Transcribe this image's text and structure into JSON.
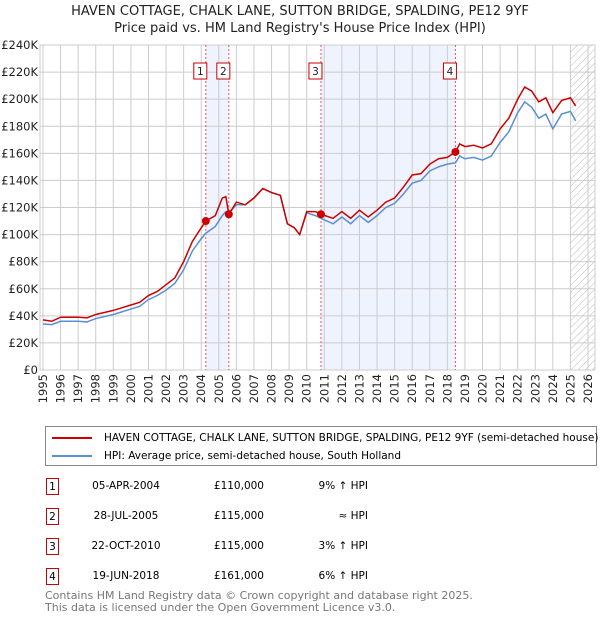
{
  "title": "HAVEN COTTAGE, CHALK LANE, SUTTON BRIDGE, SPALDING, PE12 9YF",
  "subtitle": "Price paid vs. HM Land Registry's House Price Index (HPI)",
  "chart_data": {
    "type": "line",
    "title": "HAVEN COTTAGE, CHALK LANE, SUTTON BRIDGE, SPALDING, PE12 9YF",
    "xlim": [
      1995,
      2026
    ],
    "ylim": [
      0,
      240000
    ],
    "x_ticks": [
      "1995",
      "1996",
      "1997",
      "1998",
      "1999",
      "2000",
      "2001",
      "2002",
      "2003",
      "2004",
      "2005",
      "2006",
      "2007",
      "2008",
      "2009",
      "2010",
      "2011",
      "2012",
      "2013",
      "2014",
      "2015",
      "2016",
      "2017",
      "2018",
      "2019",
      "2020",
      "2021",
      "2022",
      "2023",
      "2024",
      "2025",
      "2026"
    ],
    "y_ticks": [
      {
        "v": 0,
        "label": "£0"
      },
      {
        "v": 20000,
        "label": "£20K"
      },
      {
        "v": 40000,
        "label": "£40K"
      },
      {
        "v": 60000,
        "label": "£60K"
      },
      {
        "v": 80000,
        "label": "£80K"
      },
      {
        "v": 100000,
        "label": "£100K"
      },
      {
        "v": 120000,
        "label": "£120K"
      },
      {
        "v": 140000,
        "label": "£140K"
      },
      {
        "v": 160000,
        "label": "£160K"
      },
      {
        "v": 180000,
        "label": "£180K"
      },
      {
        "v": 200000,
        "label": "£200K"
      },
      {
        "v": 220000,
        "label": "£220K"
      },
      {
        "v": 240000,
        "label": "£240K"
      }
    ],
    "grid": true,
    "projection_from": 2025.0,
    "series": [
      {
        "name": "HAVEN COTTAGE, CHALK LANE, SUTTON BRIDGE, SPALDING, PE12 9YF (semi-detached house)",
        "color": "#cc0000",
        "x": [
          1995,
          1995.5,
          1996,
          1997,
          1997.5,
          1998,
          1999,
          2000,
          2000.5,
          2001,
          2001.5,
          2002,
          2002.5,
          2003,
          2003.5,
          2004,
          2004.26,
          2004.8,
          2005.2,
          2005.4,
          2005.57,
          2006,
          2006.5,
          2007,
          2007.5,
          2008,
          2008.5,
          2008.9,
          2009.3,
          2009.6,
          2010,
          2010.5,
          2010.81,
          2011.5,
          2012,
          2012.5,
          2013,
          2013.5,
          2014,
          2014.5,
          2015,
          2015.5,
          2016,
          2016.5,
          2017,
          2017.5,
          2018,
          2018.46,
          2018.7,
          2019,
          2019.5,
          2020,
          2020.5,
          2021,
          2021.5,
          2022,
          2022.4,
          2022.8,
          2023.2,
          2023.6,
          2024,
          2024.5,
          2025,
          2025.3
        ],
        "y": [
          37000,
          36000,
          39000,
          39000,
          38500,
          41000,
          44000,
          48000,
          50000,
          55000,
          58000,
          63000,
          68000,
          80000,
          95000,
          105000,
          110000,
          114000,
          127000,
          128000,
          115000,
          124000,
          122000,
          127000,
          134000,
          131000,
          129000,
          108000,
          105000,
          100000,
          117000,
          117000,
          115000,
          112000,
          117000,
          112000,
          118000,
          113000,
          118000,
          124000,
          127000,
          135000,
          144000,
          145000,
          152000,
          156000,
          157000,
          161000,
          167000,
          165000,
          166000,
          164000,
          167000,
          178000,
          186000,
          200000,
          209000,
          206000,
          198000,
          201000,
          190000,
          199000,
          201000,
          195000
        ]
      },
      {
        "name": "HPI: Average price, semi-detached house, South Holland",
        "color": "#5b8fd4",
        "x": [
          1995,
          1995.5,
          1996,
          1997,
          1997.5,
          1998,
          1999,
          2000,
          2000.5,
          2001,
          2001.5,
          2002,
          2002.5,
          2003,
          2003.5,
          2004,
          2004.26,
          2004.8,
          2005.2,
          2005.4,
          2005.57,
          2006,
          2006.5,
          2007,
          2007.5,
          2008,
          2008.5,
          2008.9,
          2009.3,
          2009.6,
          2010,
          2010.5,
          2010.81,
          2011.5,
          2012,
          2012.5,
          2013,
          2013.5,
          2014,
          2014.5,
          2015,
          2015.5,
          2016,
          2016.5,
          2017,
          2017.5,
          2018,
          2018.46,
          2018.7,
          2019,
          2019.5,
          2020,
          2020.5,
          2021,
          2021.5,
          2022,
          2022.4,
          2022.8,
          2023.2,
          2023.6,
          2024,
          2024.5,
          2025,
          2025.3
        ],
        "y": [
          34000,
          33500,
          36000,
          36000,
          35500,
          38000,
          41000,
          45000,
          47000,
          52000,
          55000,
          59000,
          64000,
          74000,
          88000,
          97000,
          101000,
          106000,
          114000,
          117000,
          116000,
          122000,
          122000,
          127000,
          134000,
          131000,
          129000,
          108000,
          105000,
          100000,
          116000,
          114000,
          112000,
          108000,
          113000,
          108000,
          114000,
          109000,
          114000,
          120000,
          123000,
          130000,
          138000,
          140000,
          147000,
          150000,
          152000,
          153000,
          158000,
          156000,
          157000,
          155000,
          158000,
          168000,
          176000,
          190000,
          198000,
          194000,
          186000,
          189000,
          178000,
          189000,
          191000,
          184000
        ]
      }
    ],
    "sales": [
      {
        "label": "1",
        "x": 2004.26,
        "y": 110000
      },
      {
        "label": "2",
        "x": 2005.57,
        "y": 115000
      },
      {
        "label": "3",
        "x": 2010.81,
        "y": 115000
      },
      {
        "label": "4",
        "x": 2018.46,
        "y": 161000
      }
    ],
    "shaded_ranges": [
      [
        2004.26,
        2005.57
      ],
      [
        2010.81,
        2018.46
      ]
    ]
  },
  "legend": {
    "property": "HAVEN COTTAGE, CHALK LANE, SUTTON BRIDGE, SPALDING, PE12 9YF (semi-detached house)",
    "hpi": "HPI: Average price, semi-detached house, South Holland"
  },
  "transactions": [
    {
      "num": "1",
      "date": "05-APR-2004",
      "price": "£110,000",
      "hpi": "9% ↑ HPI"
    },
    {
      "num": "2",
      "date": "28-JUL-2005",
      "price": "£115,000",
      "hpi": "≈ HPI"
    },
    {
      "num": "3",
      "date": "22-OCT-2010",
      "price": "£115,000",
      "hpi": "3% ↑ HPI"
    },
    {
      "num": "4",
      "date": "19-JUN-2018",
      "price": "£161,000",
      "hpi": "6% ↑ HPI"
    }
  ],
  "footer": {
    "line1": "Contains HM Land Registry data © Crown copyright and database right 2025.",
    "line2": "This data is licensed under the Open Government Licence v3.0."
  }
}
